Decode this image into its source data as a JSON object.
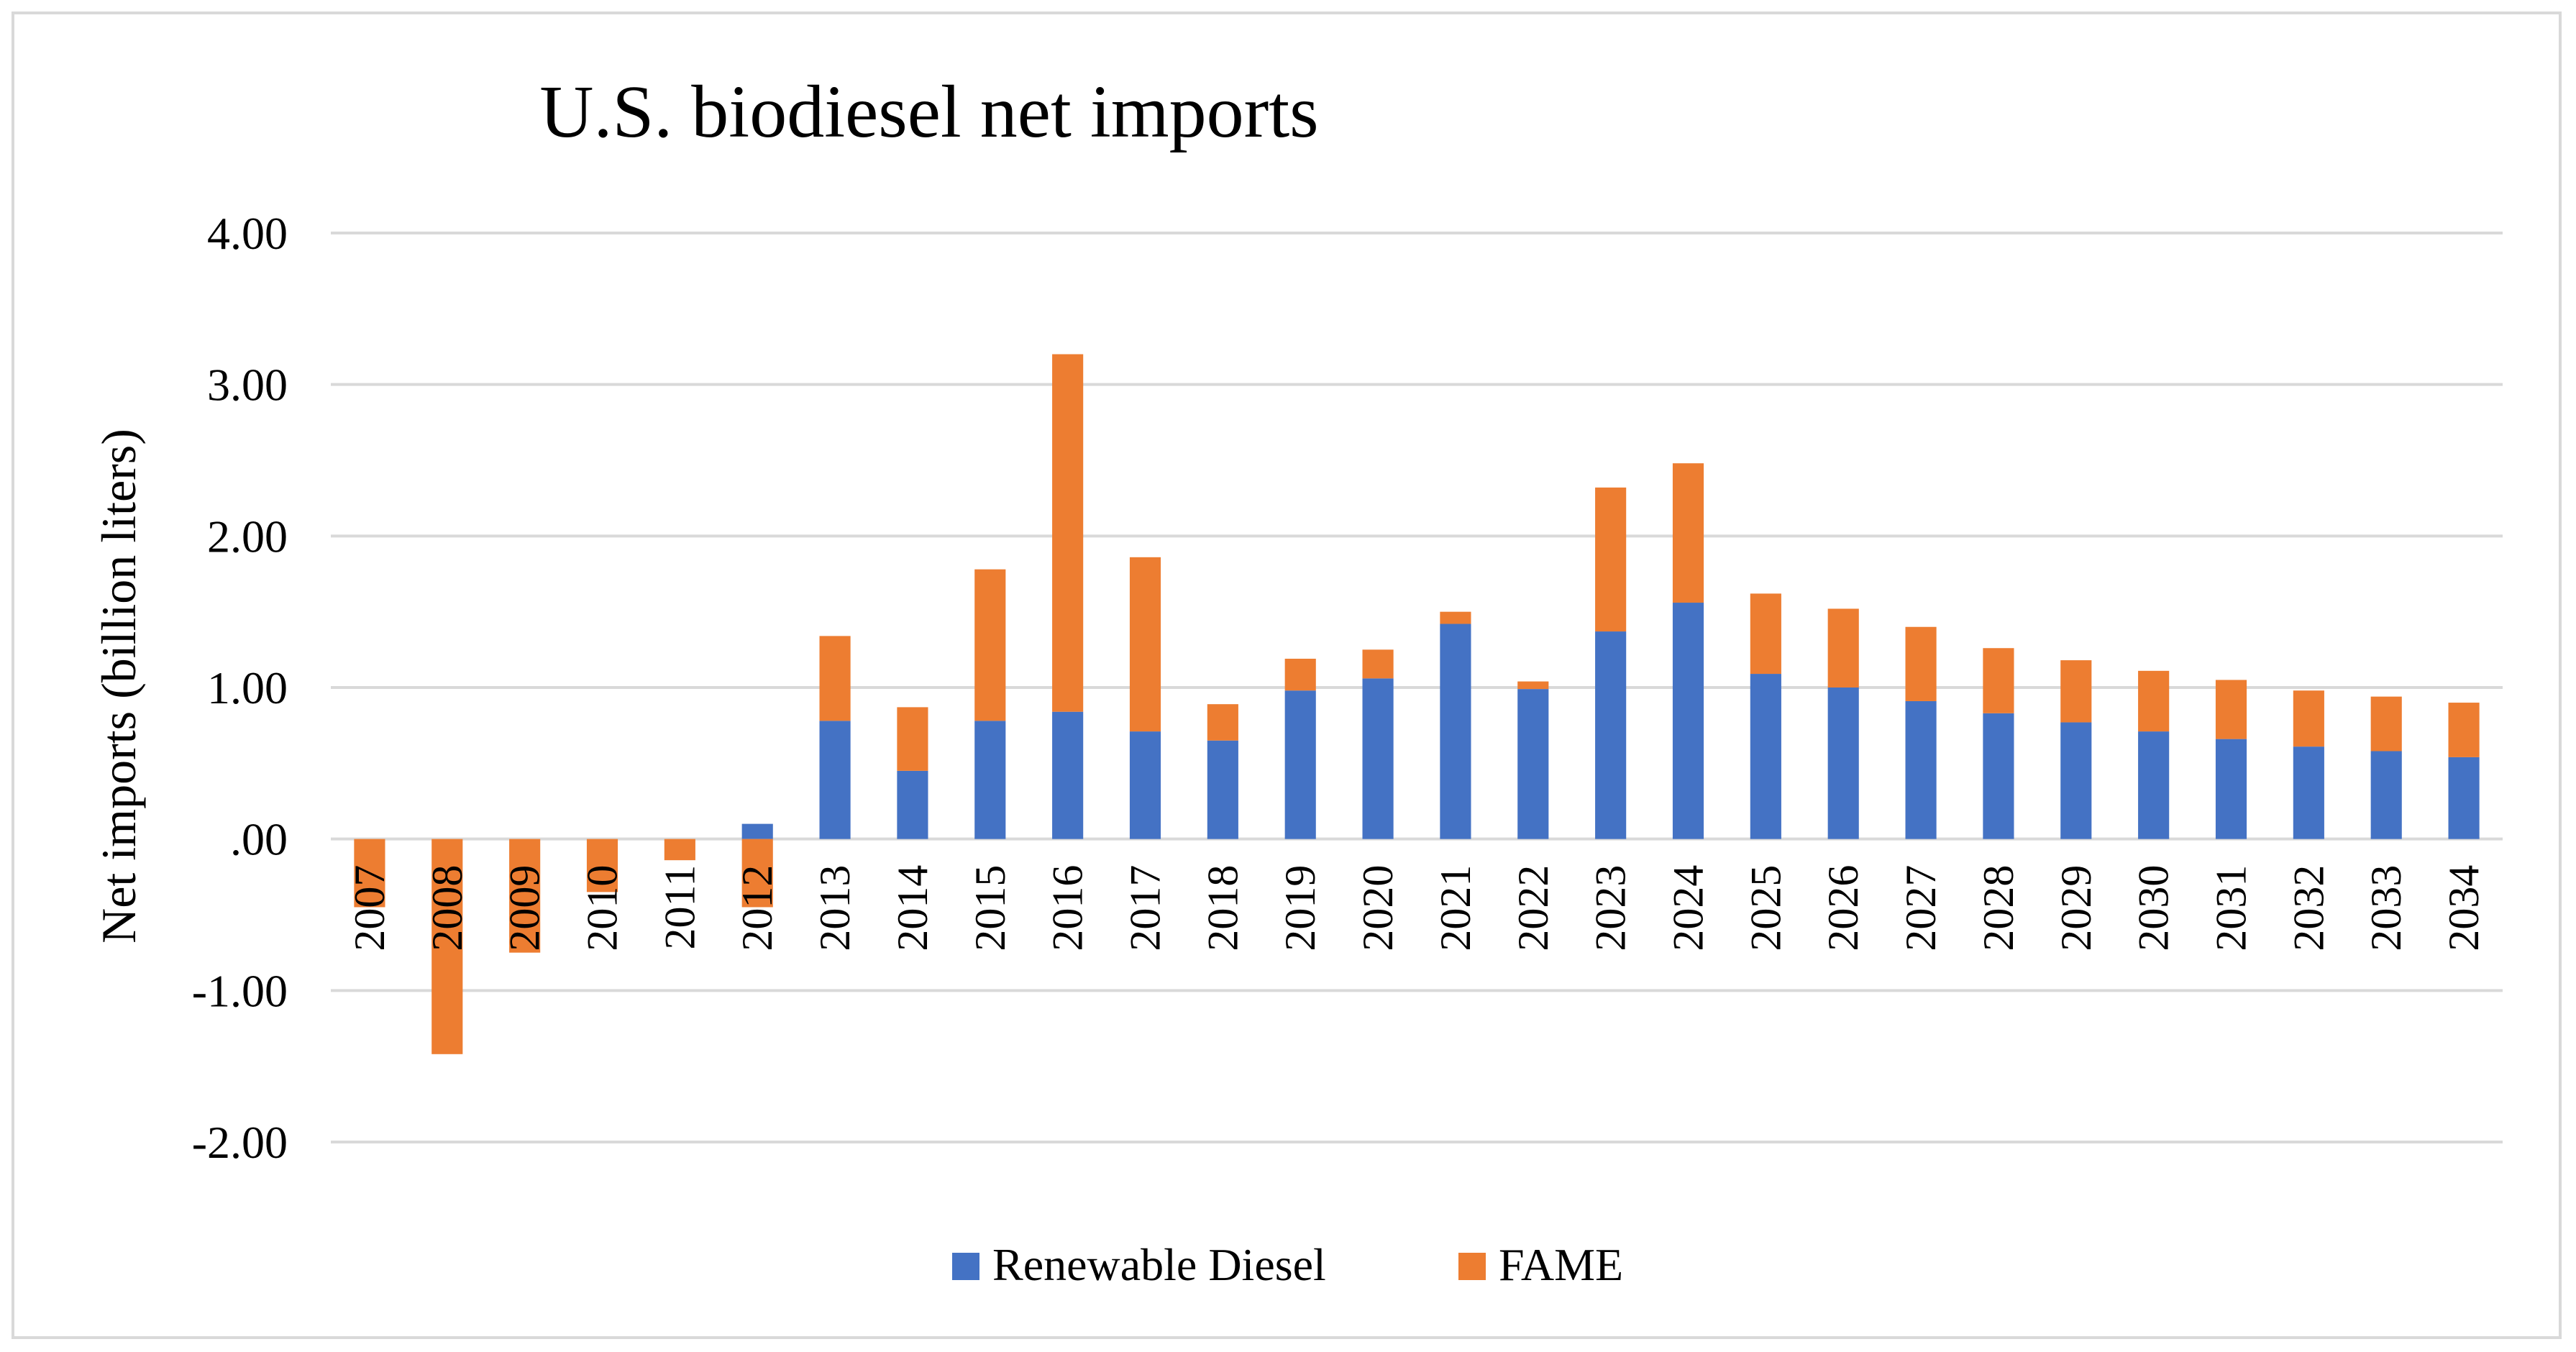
{
  "chart_data": {
    "type": "bar",
    "stacked": true,
    "title": "U.S. biodiesel net imports",
    "xlabel": "",
    "ylabel": "Net imports (billion liters)",
    "ylim": [
      -2,
      4
    ],
    "yticks": [
      {
        "value": 4,
        "label": "4.00"
      },
      {
        "value": 3,
        "label": "3.00"
      },
      {
        "value": 2,
        "label": "2.00"
      },
      {
        "value": 1,
        "label": "1.00"
      },
      {
        "value": 0,
        "label": ".00"
      },
      {
        "value": -1,
        "label": "-1.00"
      },
      {
        "value": -2,
        "label": "-2.00"
      }
    ],
    "grid": true,
    "legend_position": "bottom",
    "categories": [
      "2007",
      "2008",
      "2009",
      "2010",
      "2011",
      "2012",
      "2013",
      "2014",
      "2015",
      "2016",
      "2017",
      "2018",
      "2019",
      "2020",
      "2021",
      "2022",
      "2023",
      "2024",
      "2025",
      "2026",
      "2027",
      "2028",
      "2029",
      "2030",
      "2031",
      "2032",
      "2033",
      "2034"
    ],
    "series": [
      {
        "name": "Renewable Diesel",
        "color": "#4472c4",
        "values": [
          0,
          0,
          0,
          0,
          0,
          0.1,
          0.78,
          0.45,
          0.78,
          0.84,
          0.71,
          0.65,
          0.98,
          1.06,
          1.42,
          0.99,
          1.37,
          1.56,
          1.09,
          1.0,
          0.91,
          0.83,
          0.77,
          0.71,
          0.66,
          0.61,
          0.58,
          0.54
        ]
      },
      {
        "name": "FAME",
        "color": "#ed7d31",
        "values": [
          -0.45,
          -1.42,
          -0.75,
          -0.35,
          -0.14,
          -0.45,
          0.56,
          0.42,
          1.0,
          2.36,
          1.15,
          0.24,
          0.21,
          0.19,
          0.08,
          0.05,
          0.95,
          0.92,
          0.53,
          0.52,
          0.49,
          0.43,
          0.41,
          0.4,
          0.39,
          0.37,
          0.36,
          0.36
        ]
      }
    ]
  },
  "colors": {
    "gridline": "#d9d9d9",
    "frame": "#d9d9d9"
  }
}
